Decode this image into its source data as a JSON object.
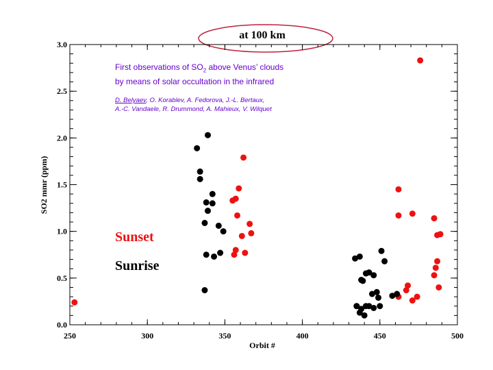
{
  "chart_data": {
    "type": "scatter",
    "title": "at 100 km",
    "xlabel": "Orbit #",
    "ylabel": "SO2 mmr (ppm)",
    "xlim": [
      250,
      500
    ],
    "ylim": [
      0.0,
      3.0
    ],
    "x_ticks": [
      "250",
      "300",
      "350",
      "400",
      "450",
      "500"
    ],
    "y_ticks": [
      "0.0",
      "0.5",
      "1.0",
      "1.5",
      "2.0",
      "2.5",
      "3.0"
    ],
    "colors": {
      "sunset": "#ee1111",
      "sunrise": "#000000",
      "title_ellipse": "#c0203c"
    },
    "series": [
      {
        "name": "Sunset",
        "color": "#ee1111",
        "points": [
          [
            253,
            0.24
          ],
          [
            355,
            1.33
          ],
          [
            357,
            1.35
          ],
          [
            359,
            1.46
          ],
          [
            358,
            1.17
          ],
          [
            362,
            1.79
          ],
          [
            366,
            1.08
          ],
          [
            367,
            0.98
          ],
          [
            361,
            0.95
          ],
          [
            357,
            0.8
          ],
          [
            356,
            0.75
          ],
          [
            363,
            0.77
          ],
          [
            462,
            1.45
          ],
          [
            462,
            1.17
          ],
          [
            471,
            1.19
          ],
          [
            476,
            2.83
          ],
          [
            462,
            0.3
          ],
          [
            467,
            0.37
          ],
          [
            468,
            0.42
          ],
          [
            471,
            0.26
          ],
          [
            474,
            0.3
          ],
          [
            485,
            1.14
          ],
          [
            485,
            0.53
          ],
          [
            486,
            0.61
          ],
          [
            487,
            0.68
          ],
          [
            487,
            0.96
          ],
          [
            489,
            0.97
          ],
          [
            488,
            0.4
          ]
        ]
      },
      {
        "name": "Sunrise",
        "color": "#000000",
        "points": [
          [
            332,
            1.89
          ],
          [
            339,
            2.03
          ],
          [
            334,
            1.64
          ],
          [
            334,
            1.56
          ],
          [
            342,
            1.4
          ],
          [
            338,
            1.31
          ],
          [
            342,
            1.3
          ],
          [
            339,
            1.22
          ],
          [
            337,
            1.09
          ],
          [
            346,
            1.06
          ],
          [
            349,
            1.0
          ],
          [
            338,
            0.75
          ],
          [
            343,
            0.73
          ],
          [
            347,
            0.77
          ],
          [
            337,
            0.37
          ],
          [
            434,
            0.71
          ],
          [
            437,
            0.73
          ],
          [
            438,
            0.48
          ],
          [
            439,
            0.47
          ],
          [
            441,
            0.55
          ],
          [
            443,
            0.56
          ],
          [
            446,
            0.53
          ],
          [
            448,
            0.35
          ],
          [
            445,
            0.33
          ],
          [
            449,
            0.29
          ],
          [
            451,
            0.79
          ],
          [
            453,
            0.68
          ],
          [
            435,
            0.2
          ],
          [
            438,
            0.17
          ],
          [
            437,
            0.13
          ],
          [
            440,
            0.1
          ],
          [
            441,
            0.2
          ],
          [
            443,
            0.2
          ],
          [
            446,
            0.18
          ],
          [
            450,
            0.2
          ],
          [
            458,
            0.31
          ],
          [
            461,
            0.33
          ],
          [
            435,
            0.2
          ]
        ]
      }
    ]
  },
  "overlay": {
    "title_line1": "First observations of SO",
    "title_sub": "2",
    "title_line1_rest": " above Venus’ clouds",
    "title_line2": "by means of solar occultation in the infrared",
    "author_first": "D. Belyaev",
    "authors_line1_rest": ", O. Korablev, A. Fedorova, J.-L. Bertaux,",
    "authors_line2": "A.-C. Vandaele, R. Drummond, A. Mahieux, V. Wilquet"
  }
}
